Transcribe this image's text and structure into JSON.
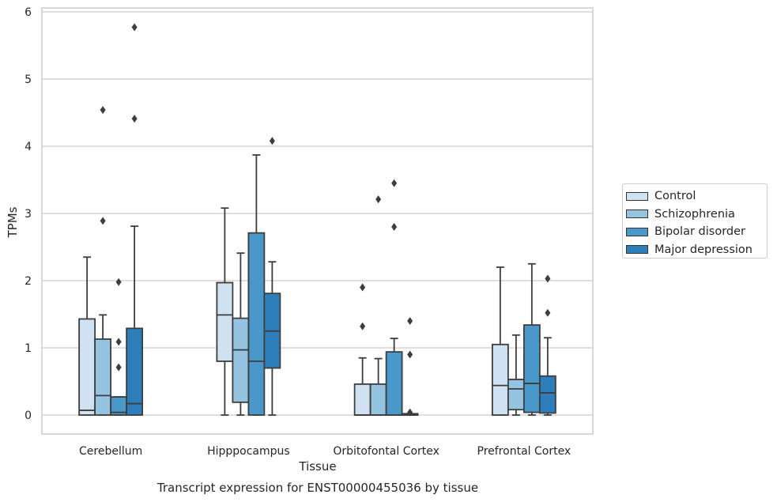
{
  "chart_data": {
    "type": "box",
    "title": "Transcript expression for ENST00000455036 by tissue",
    "xlabel": "Tissue",
    "ylabel": "TPMs",
    "ylim": [
      -0.28,
      6.1
    ],
    "yticks": [
      "0",
      "1",
      "2",
      "3",
      "4",
      "5",
      "6"
    ],
    "grid": true,
    "legend_position": "right",
    "categories": [
      "Cerebellum",
      "Hipppocampus",
      "Orbitofontal Cortex",
      "Prefrontal Cortex"
    ],
    "series": [
      {
        "name": "Control",
        "color": "#d0e1f2",
        "boxes": [
          {
            "whisker_low": 0,
            "q1": 0,
            "median": 0.07,
            "q3": 1.43,
            "whisker_high": 2.35,
            "outliers": []
          },
          {
            "whisker_low": 0,
            "q1": 0.8,
            "median": 1.49,
            "q3": 1.97,
            "whisker_high": 3.08,
            "outliers": []
          },
          {
            "whisker_low": 0,
            "q1": 0,
            "median": 0,
            "q3": 0.46,
            "whisker_high": 0.85,
            "outliers": [
              1.32,
              1.9
            ]
          },
          {
            "whisker_low": 0,
            "q1": 0,
            "median": 0.44,
            "q3": 1.05,
            "whisker_high": 2.2,
            "outliers": []
          }
        ]
      },
      {
        "name": "Schizophrenia",
        "color": "#94c4df",
        "boxes": [
          {
            "whisker_low": 0,
            "q1": 0,
            "median": 0.29,
            "q3": 1.13,
            "whisker_high": 1.49,
            "outliers": [
              2.89,
              4.54
            ]
          },
          {
            "whisker_low": 0,
            "q1": 0.19,
            "median": 0.97,
            "q3": 1.44,
            "whisker_high": 2.41,
            "outliers": []
          },
          {
            "whisker_low": 0,
            "q1": 0,
            "median": 0,
            "q3": 0.46,
            "whisker_high": 0.84,
            "outliers": [
              3.21
            ]
          },
          {
            "whisker_low": 0,
            "q1": 0.08,
            "median": 0.39,
            "q3": 0.53,
            "whisker_high": 1.19,
            "outliers": []
          }
        ]
      },
      {
        "name": "Bipolar disorder",
        "color": "#4a98c9",
        "boxes": [
          {
            "whisker_low": 0,
            "q1": 0,
            "median": 0.04,
            "q3": 0.27,
            "whisker_high": 0.27,
            "outliers": [
              0.71,
              1.09,
              1.98
            ]
          },
          {
            "whisker_low": 0,
            "q1": 0,
            "median": 0.8,
            "q3": 2.71,
            "whisker_high": 3.87,
            "outliers": []
          },
          {
            "whisker_low": 0,
            "q1": 0,
            "median": 0,
            "q3": 0.94,
            "whisker_high": 1.14,
            "outliers": [
              2.8,
              3.45
            ]
          },
          {
            "whisker_low": 0,
            "q1": 0.04,
            "median": 0.47,
            "q3": 1.34,
            "whisker_high": 2.25,
            "outliers": []
          }
        ]
      },
      {
        "name": "Major depression",
        "color": "#2e7ebc",
        "boxes": [
          {
            "whisker_low": 0,
            "q1": 0,
            "median": 0.17,
            "q3": 1.29,
            "whisker_high": 2.81,
            "outliers": [
              4.41,
              5.77
            ]
          },
          {
            "whisker_low": 0,
            "q1": 0.7,
            "median": 1.25,
            "q3": 1.81,
            "whisker_high": 2.28,
            "outliers": [
              4.08
            ]
          },
          {
            "whisker_low": 0,
            "q1": 0,
            "median": 0,
            "q3": 0.02,
            "whisker_high": 0.02,
            "outliers": [
              0.04,
              0.9,
              1.4
            ]
          },
          {
            "whisker_low": 0,
            "q1": 0.03,
            "median": 0.33,
            "q3": 0.58,
            "whisker_high": 1.15,
            "outliers": [
              1.52,
              2.03
            ]
          }
        ]
      }
    ]
  }
}
